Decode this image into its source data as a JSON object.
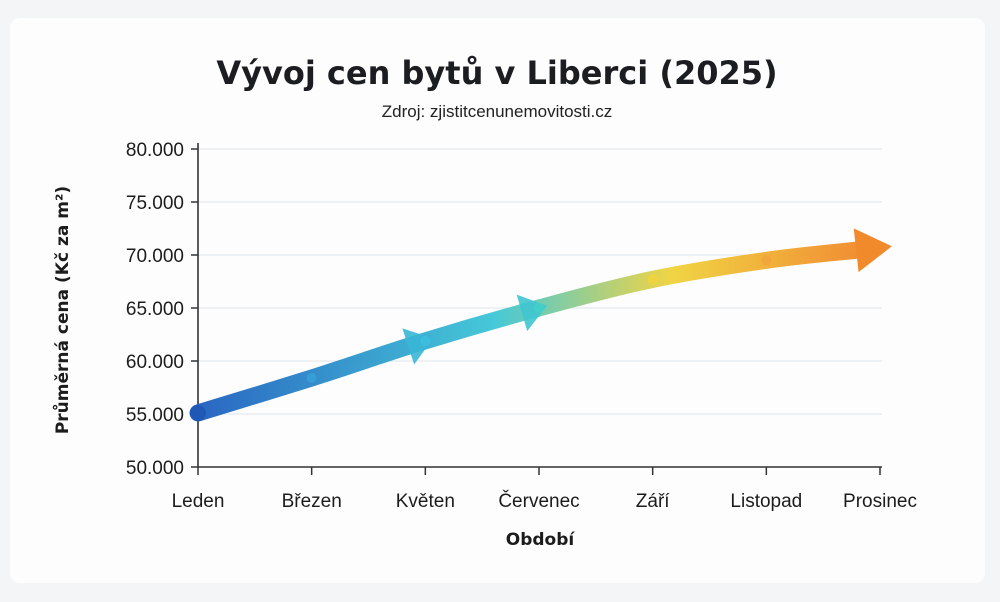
{
  "chart_data": {
    "type": "line",
    "title": "Vývoj cen bytů v Liberci (2025)",
    "subtitle": "Zdroj: zjistitcenunemovitosti.cz",
    "xlabel": "Období",
    "ylabel": "Průměrná cena (Kč za m²)",
    "categories": [
      "Leden",
      "Březen",
      "Květen",
      "Červenec",
      "Září",
      "Listopad",
      "Prosinec"
    ],
    "ylim": [
      50000,
      80000
    ],
    "yticks": [
      50000,
      55000,
      60000,
      65000,
      70000,
      75000,
      80000
    ],
    "ytick_labels": [
      "50.000",
      "55.000",
      "60.000",
      "65.000",
      "70.000",
      "75.000",
      "80.000"
    ],
    "grid": true,
    "series": [
      {
        "values": [
          55100,
          58400,
          61900,
          65000,
          67700,
          69500,
          70700
        ]
      }
    ],
    "colors": {
      "start": "#1f5fbf",
      "mid": "#3cc6d6",
      "yellow": "#f0d23a",
      "end": "#f08a2a",
      "grid": "#e6eaee",
      "axis": "#333333"
    }
  }
}
